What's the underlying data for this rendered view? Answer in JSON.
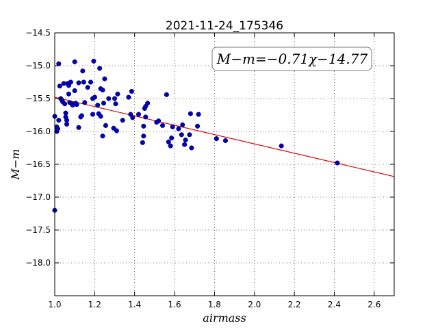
{
  "chart_data": {
    "type": "scatter",
    "title": "2021-11-24_175346",
    "xlabel": "airmass",
    "ylabel": "M−m",
    "annotation": "M−m=−0.71χ−14.77",
    "xlim": [
      1.0,
      2.7
    ],
    "ylim": [
      -18.5,
      -14.5
    ],
    "y_inverted": true,
    "grid": true,
    "x_ticks": [
      1.0,
      1.2,
      1.4,
      1.6,
      1.8,
      2.0,
      2.2,
      2.4,
      2.6
    ],
    "x_tick_labels": [
      "1.0",
      "1.2",
      "1.4",
      "1.6",
      "1.8",
      "2.0",
      "2.2",
      "2.4",
      "2.6"
    ],
    "y_ticks": [
      -14.5,
      -15.0,
      -15.5,
      -16.0,
      -16.5,
      -17.0,
      -17.5,
      -18.0
    ],
    "y_tick_labels": [
      "−14.5",
      "−15.0",
      "−15.5",
      "−16.0",
      "−16.5",
      "−17.0",
      "−17.5",
      "−18.0"
    ],
    "fit": {
      "slope": -0.71,
      "intercept": -14.77,
      "color": "#e00000"
    },
    "point_color": "#0000c8",
    "points": [
      [
        1.0,
        -15.77
      ],
      [
        1.0,
        -17.2
      ],
      [
        1.01,
        -15.93
      ],
      [
        1.01,
        -16.0
      ],
      [
        1.015,
        -15.96
      ],
      [
        1.02,
        -14.97
      ],
      [
        1.02,
        -15.83
      ],
      [
        1.025,
        -15.31
      ],
      [
        1.03,
        -15.5
      ],
      [
        1.035,
        -15.52
      ],
      [
        1.04,
        -15.55
      ],
      [
        1.045,
        -15.27
      ],
      [
        1.05,
        -15.58
      ],
      [
        1.055,
        -15.78
      ],
      [
        1.055,
        -15.72
      ],
      [
        1.06,
        -15.83
      ],
      [
        1.06,
        -15.89
      ],
      [
        1.065,
        -15.27
      ],
      [
        1.07,
        -15.43
      ],
      [
        1.07,
        -15.3
      ],
      [
        1.075,
        -15.56
      ],
      [
        1.08,
        -15.25
      ],
      [
        1.085,
        -15.58
      ],
      [
        1.09,
        -15.6
      ],
      [
        1.1,
        -15.38
      ],
      [
        1.1,
        -14.94
      ],
      [
        1.105,
        -15.57
      ],
      [
        1.11,
        -15.59
      ],
      [
        1.12,
        -15.94
      ],
      [
        1.12,
        -15.26
      ],
      [
        1.13,
        -15.78
      ],
      [
        1.135,
        -15.76
      ],
      [
        1.14,
        -15.08
      ],
      [
        1.145,
        -15.25
      ],
      [
        1.15,
        -15.56
      ],
      [
        1.165,
        -15.33
      ],
      [
        1.18,
        -15.25
      ],
      [
        1.19,
        -15.5
      ],
      [
        1.19,
        -15.74
      ],
      [
        1.195,
        -14.93
      ],
      [
        1.2,
        -15.48
      ],
      [
        1.215,
        -15.6
      ],
      [
        1.22,
        -15.73
      ],
      [
        1.225,
        -15.04
      ],
      [
        1.23,
        -15.77
      ],
      [
        1.23,
        -15.35
      ],
      [
        1.24,
        -15.37
      ],
      [
        1.24,
        -16.07
      ],
      [
        1.245,
        -15.57
      ],
      [
        1.25,
        -15.2
      ],
      [
        1.255,
        -15.91
      ],
      [
        1.27,
        -15.5
      ],
      [
        1.295,
        -15.95
      ],
      [
        1.3,
        -15.5
      ],
      [
        1.305,
        -15.58
      ],
      [
        1.31,
        -15.99
      ],
      [
        1.315,
        -15.43
      ],
      [
        1.34,
        -15.83
      ],
      [
        1.37,
        -15.48
      ],
      [
        1.38,
        -15.74
      ],
      [
        1.385,
        -15.39
      ],
      [
        1.39,
        -15.79
      ],
      [
        1.42,
        -15.74
      ],
      [
        1.44,
        -16.17
      ],
      [
        1.445,
        -16.07
      ],
      [
        1.445,
        -15.92
      ],
      [
        1.45,
        -15.65
      ],
      [
        1.455,
        -15.78
      ],
      [
        1.455,
        -15.62
      ],
      [
        1.465,
        -15.57
      ],
      [
        1.51,
        -15.86
      ],
      [
        1.52,
        -15.84
      ],
      [
        1.54,
        -15.91
      ],
      [
        1.56,
        -15.44
      ],
      [
        1.57,
        -16.16
      ],
      [
        1.58,
        -16.22
      ],
      [
        1.585,
        -16.1
      ],
      [
        1.59,
        -15.93
      ],
      [
        1.62,
        -15.96
      ],
      [
        1.635,
        -16.05
      ],
      [
        1.64,
        -15.9
      ],
      [
        1.65,
        -16.2
      ],
      [
        1.655,
        -16.13
      ],
      [
        1.675,
        -16.05
      ],
      [
        1.68,
        -15.73
      ],
      [
        1.685,
        -16.25
      ],
      [
        1.715,
        -15.92
      ],
      [
        1.72,
        -15.74
      ],
      [
        1.81,
        -16.11
      ],
      [
        1.855,
        -16.14
      ],
      [
        2.135,
        -16.22
      ],
      [
        2.415,
        -16.48
      ]
    ]
  }
}
